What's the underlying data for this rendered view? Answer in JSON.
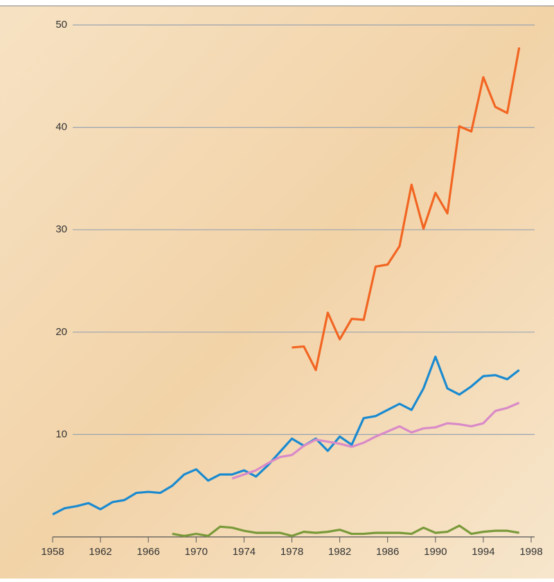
{
  "chart_data": {
    "type": "line",
    "x": [
      1958,
      1959,
      1960,
      1961,
      1962,
      1963,
      1964,
      1965,
      1966,
      1967,
      1968,
      1969,
      1970,
      1971,
      1972,
      1973,
      1974,
      1975,
      1976,
      1977,
      1978,
      1979,
      1980,
      1981,
      1982,
      1983,
      1984,
      1985,
      1986,
      1987,
      1988,
      1989,
      1990,
      1991,
      1992,
      1993,
      1994,
      1995,
      1996,
      1997
    ],
    "series": [
      {
        "color": "#1a8ad0",
        "values": [
          2.2,
          2.8,
          3.0,
          3.3,
          2.7,
          3.4,
          3.6,
          4.3,
          4.4,
          4.3,
          5.0,
          6.1,
          6.6,
          5.5,
          6.1,
          6.1,
          6.5,
          5.9,
          7.0,
          8.3,
          9.6,
          8.9,
          9.6,
          8.4,
          9.8,
          9.0,
          11.6,
          11.8,
          12.4,
          13.0,
          12.4,
          14.5,
          17.6,
          14.5,
          13.9,
          14.7,
          15.7,
          15.8,
          15.4,
          16.3
        ]
      },
      {
        "color": "#f26522",
        "values": [
          null,
          null,
          null,
          null,
          null,
          null,
          null,
          null,
          null,
          null,
          null,
          null,
          null,
          null,
          null,
          null,
          null,
          null,
          null,
          null,
          18.5,
          18.6,
          16.3,
          21.9,
          19.3,
          21.3,
          21.2,
          26.4,
          26.6,
          28.4,
          34.4,
          30.1,
          33.6,
          31.6,
          40.1,
          39.6,
          44.9,
          42.0,
          41.4,
          47.8
        ]
      },
      {
        "color": "#d98ac8",
        "values": [
          null,
          null,
          null,
          null,
          null,
          null,
          null,
          null,
          null,
          null,
          null,
          null,
          null,
          null,
          null,
          5.7,
          6.1,
          6.5,
          7.2,
          7.8,
          8.0,
          8.9,
          9.5,
          9.3,
          9.1,
          8.8,
          9.2,
          9.8,
          10.3,
          10.8,
          10.2,
          10.6,
          10.7,
          11.1,
          11.0,
          10.8,
          11.1,
          12.3,
          12.6,
          13.1
        ]
      },
      {
        "color": "#7a9a3a",
        "values": [
          null,
          null,
          null,
          null,
          null,
          null,
          null,
          null,
          null,
          null,
          0.3,
          0.1,
          0.3,
          0.1,
          1.0,
          0.9,
          0.6,
          0.4,
          0.4,
          0.4,
          0.1,
          0.5,
          0.4,
          0.5,
          0.7,
          0.3,
          0.3,
          0.4,
          0.4,
          0.4,
          0.3,
          0.9,
          0.4,
          0.5,
          1.1,
          0.3,
          0.5,
          0.6,
          0.6,
          0.4
        ]
      }
    ],
    "xlim": [
      1958,
      1998
    ],
    "xticks": [
      1958,
      1962,
      1966,
      1970,
      1974,
      1978,
      1982,
      1986,
      1990,
      1994,
      1998
    ],
    "ylim": [
      0,
      50
    ],
    "yticks": [
      10,
      20,
      30,
      40,
      50
    ],
    "grid": true
  }
}
